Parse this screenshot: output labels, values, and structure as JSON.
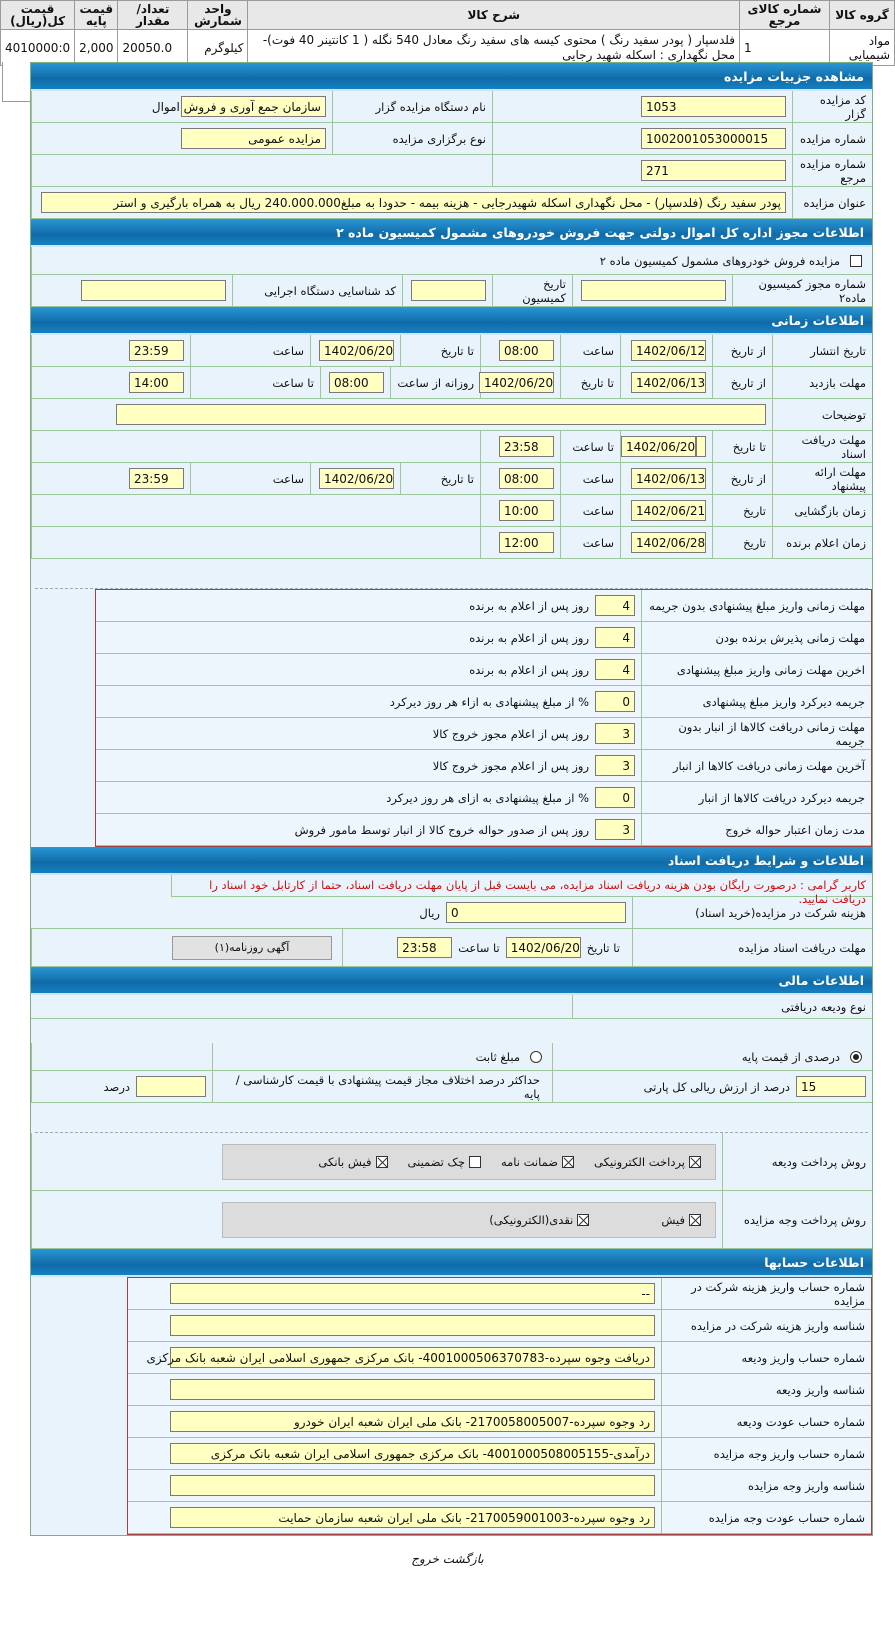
{
  "goods_table": {
    "headers": [
      "گروه کالا",
      "شماره کالای مرجع",
      "شرح کالا",
      "واحد شمارش",
      "تعداد/مقدار",
      "قیمت پایه",
      "قیمت کل(ریال)"
    ],
    "row": [
      "مواد شیمیایی",
      "1",
      "فلدسپار ( پودر سفید رنگ ) محتوی کیسه های سفید رنگ معادل 540 نگله ( 1 کانتینر 40 فوت)- محل نگهداری : اسکله شهید رجایی",
      "کیلوگرم",
      "20050.0",
      "2,000",
      "4010000:0"
    ]
  },
  "details": {
    "title": "مشاهده جزییات مزایده",
    "auctioneer_code_label": "کد مزایده گزار",
    "auctioneer_code": "1053",
    "org_name_label": "نام دستگاه مزایده گزار",
    "org_name": "سازمان جمع آوری و فروش اموال",
    "auction_no_label": "شماره مزایده",
    "auction_no": "1002001053000015",
    "type_label": "نوع برگزاری مزایده",
    "type": "مزایده عمومی",
    "ref_no_label": "شماره مزایده مرجع",
    "ref_no": "271",
    "subject_label": "عنوان مزایده",
    "subject": "پودر سفید رنگ (فلدسپار) - محل نگهداری اسکله شهیدرجایی - هزینه بیمه - حدودا به مبلغ240.000.000 ریال به همراه بارگیری و استر"
  },
  "permit": {
    "title": "اطلاعات مجوز اداره کل اموال دولتی جهت فروش خودروهای مشمول کمیسیون ماده ۲",
    "checkbox_label": "مزایده فروش خودروهای مشمول کمیسیون ماده ۲",
    "permit_no_label": "شماره مجوز کمیسیون ماده۲",
    "commission_date_label": "تاریخ کمیسیون",
    "exec_id_label": "کد شناسایی دستگاه اجرایی",
    "permit_no": "",
    "commission_date": "",
    "exec_id": ""
  },
  "timing": {
    "title": "اطلاعات زمانی",
    "publish": {
      "label": "تاریخ انتشار",
      "from_label": "از تاریخ",
      "from": "1402/06/12",
      "time_label": "ساعت",
      "time": "08:00",
      "to_label": "تا تاریخ",
      "to": "1402/06/20",
      "time2_label": "ساعت",
      "time2": "23:59"
    },
    "visit": {
      "label": "مهلت بازدید",
      "from_label": "از تاریخ",
      "from": "1402/06/13",
      "to_label": "تا تاریخ",
      "to": "1402/06/20",
      "daily_label": "روزانه از ساعت",
      "daily": "08:00",
      "until_label": "تا ساعت",
      "until": "14:00"
    },
    "notes": {
      "label": "توضیحات",
      "value": ""
    },
    "doc": {
      "label": "مهلت دریافت اسناد",
      "to_label": "تا تاریخ",
      "to": "1402/06/20",
      "time_label": "تا ساعت",
      "time": "23:58"
    },
    "offer": {
      "label": "مهلت ارائه پیشنهاد",
      "from_label": "از تاریخ",
      "from": "1402/06/13",
      "time_label": "ساعت",
      "time": "08:00",
      "to_label": "تا تاریخ",
      "to": "1402/06/20",
      "time2_label": "ساعت",
      "time2": "23:59"
    },
    "opening": {
      "label": "زمان بازگشایی",
      "date_label": "تاریخ",
      "date": "1402/06/21",
      "time_label": "ساعت",
      "time": "10:00"
    },
    "winner": {
      "label": "زمان اعلام برنده",
      "date_label": "تاریخ",
      "date": "1402/06/28",
      "time_label": "ساعت",
      "time": "12:00"
    }
  },
  "penalties": [
    {
      "label": "مهلت زمانی واریز مبلغ پیشنهادی بدون جریمه",
      "value": "4",
      "suffix": "روز پس از اعلام به برنده"
    },
    {
      "label": "مهلت زمانی پذیرش برنده بودن",
      "value": "4",
      "suffix": "روز پس از اعلام به برنده"
    },
    {
      "label": "اخرین مهلت زمانی واریز مبلغ پیشنهادی",
      "value": "4",
      "suffix": "روز پس از اعلام به برنده"
    },
    {
      "label": "جریمه دیرکرد واریز مبلغ پیشنهادی",
      "value": "0",
      "suffix": "% از مبلغ پیشنهادی به ازاء هر روز دیرکرد"
    },
    {
      "label": "مهلت زمانی دریافت کالاها از انبار بدون جریمه",
      "value": "3",
      "suffix": "روز پس از اعلام مجوز خروج کالا"
    },
    {
      "label": "آخرین مهلت زمانی دریافت کالاها از انبار",
      "value": "3",
      "suffix": "روز پس از اعلام مجوز خروج کالا"
    },
    {
      "label": "جریمه دیرکرد دریافت کالاها از انبار",
      "value": "0",
      "suffix": "% از مبلغ پیشنهادی به ازای هر روز دیرکرد"
    },
    {
      "label": "مدت زمان اعتبار حواله خروج",
      "value": "3",
      "suffix": "روز پس از صدور حواله خروج کالا از انبار توسط مامور فروش"
    }
  ],
  "documents": {
    "title": "اطلاعات و شرایط دریافت اسناد",
    "notice": "کاربر گرامی : درصورت رایگان بودن هزینه دریافت اسناد مزایده، می بایست قبل از پایان مهلت دریافت اسناد، حتما از کارتابل خود اسناد را دریافت نمایید.",
    "fee_label": "هزینه شرکت در مزایده(خرید اسناد)",
    "fee": "0",
    "fee_unit": "ریال",
    "deadline_label": "مهلت دریافت اسناد مزایده",
    "to_label": "تا تاریخ",
    "to": "1402/06/20",
    "time_label": "تا ساعت",
    "time": "23:58",
    "ad_button": "آگهی روزنامه(۱)"
  },
  "finance": {
    "title": "اطلاعات مالی",
    "deposit_type_label": "نوع ودیعه دریافتی",
    "radio_percent": "درصدی از قیمت پایه",
    "radio_fixed": "مبلغ ثابت",
    "selected": "درصدی از قیمت پایه",
    "percent": "15",
    "percent_label": "درصد از ارزش ریالی کل پارتی",
    "max_diff_label": "حداکثر درصد اختلاف مجاز قیمت پیشنهادی با قیمت کارشناسی / پایه",
    "max_diff": "",
    "max_diff_unit": "درصد",
    "deposit_pay_label": "روش پرداخت ودیعه",
    "deposit_methods": [
      {
        "label": "پرداخت الکترونیکی",
        "checked": true
      },
      {
        "label": "ضمانت نامه",
        "checked": true
      },
      {
        "label": "چک تضمینی",
        "checked": false
      },
      {
        "label": "فیش بانکی",
        "checked": true
      }
    ],
    "price_pay_label": "روش پرداخت وجه مزایده",
    "price_methods": [
      {
        "label": "فیش",
        "checked": true
      },
      {
        "label": "نقدی(الکترونیکی)",
        "checked": true
      }
    ]
  },
  "accounts": {
    "title": "اطلاعات حسابها",
    "rows": [
      {
        "label": "شماره حساب واریز هزینه شرکت در مزایده",
        "value": "--"
      },
      {
        "label": "شناسه واریز هزینه شرکت در مزایده",
        "value": ""
      },
      {
        "label": "شماره حساب واریز ودیعه",
        "value": "دریافت وجوه سپرده-4001000506370783- بانک مرکزی جمهوری اسلامی ایران شعبه بانک مرکزی"
      },
      {
        "label": "شناسه واریز ودیعه",
        "value": ""
      },
      {
        "label": "شماره حساب عودت ودیعه",
        "value": "رد وجوه سپرده-2170058005007- بانک ملی ایران شعبه ایران خودرو"
      },
      {
        "label": "شماره حساب واریز وجه مزایده",
        "value": "درآمدی-4001000508005155- بانک مرکزی جمهوری اسلامی ایران شعبه بانک مرکزی"
      },
      {
        "label": "شناسه واریز وجه مزایده",
        "value": ""
      },
      {
        "label": "شماره حساب عودت وجه مزایده",
        "value": "رد وجوه سپرده-2170059001003- بانک ملی ایران شعبه سازمان حمایت"
      }
    ]
  },
  "footer": {
    "back": "بازگشت",
    "exit": "خروج"
  }
}
